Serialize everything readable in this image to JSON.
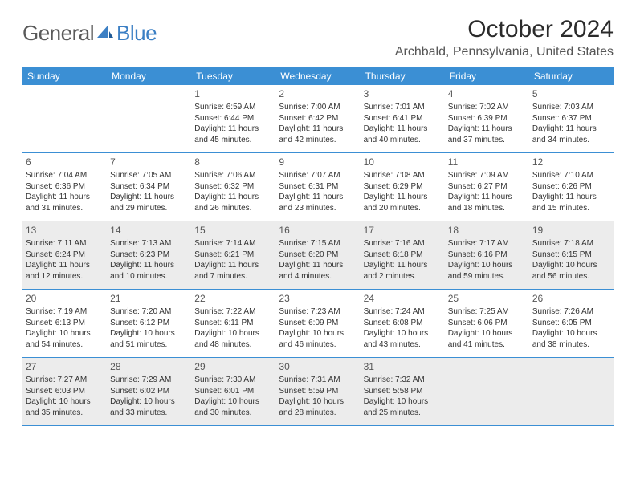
{
  "logo": {
    "general": "General",
    "blue": "Blue"
  },
  "title": "October 2024",
  "location": "Archbald, Pennsylvania, United States",
  "colors": {
    "header_bg": "#3b8fd4",
    "header_text": "#ffffff",
    "alt_bg": "#ececec",
    "border": "#3b8fd4",
    "logo_gray": "#5a5a5a",
    "logo_blue": "#3b7fc4"
  },
  "weekdays": [
    "Sunday",
    "Monday",
    "Tuesday",
    "Wednesday",
    "Thursday",
    "Friday",
    "Saturday"
  ],
  "weeks": [
    [
      {
        "empty": true
      },
      {
        "empty": true
      },
      {
        "n": "1",
        "sr": "6:59 AM",
        "ss": "6:44 PM",
        "dl": "11 hours and 45 minutes."
      },
      {
        "n": "2",
        "sr": "7:00 AM",
        "ss": "6:42 PM",
        "dl": "11 hours and 42 minutes."
      },
      {
        "n": "3",
        "sr": "7:01 AM",
        "ss": "6:41 PM",
        "dl": "11 hours and 40 minutes."
      },
      {
        "n": "4",
        "sr": "7:02 AM",
        "ss": "6:39 PM",
        "dl": "11 hours and 37 minutes."
      },
      {
        "n": "5",
        "sr": "7:03 AM",
        "ss": "6:37 PM",
        "dl": "11 hours and 34 minutes."
      }
    ],
    [
      {
        "n": "6",
        "sr": "7:04 AM",
        "ss": "6:36 PM",
        "dl": "11 hours and 31 minutes."
      },
      {
        "n": "7",
        "sr": "7:05 AM",
        "ss": "6:34 PM",
        "dl": "11 hours and 29 minutes."
      },
      {
        "n": "8",
        "sr": "7:06 AM",
        "ss": "6:32 PM",
        "dl": "11 hours and 26 minutes."
      },
      {
        "n": "9",
        "sr": "7:07 AM",
        "ss": "6:31 PM",
        "dl": "11 hours and 23 minutes."
      },
      {
        "n": "10",
        "sr": "7:08 AM",
        "ss": "6:29 PM",
        "dl": "11 hours and 20 minutes."
      },
      {
        "n": "11",
        "sr": "7:09 AM",
        "ss": "6:27 PM",
        "dl": "11 hours and 18 minutes."
      },
      {
        "n": "12",
        "sr": "7:10 AM",
        "ss": "6:26 PM",
        "dl": "11 hours and 15 minutes."
      }
    ],
    [
      {
        "n": "13",
        "sr": "7:11 AM",
        "ss": "6:24 PM",
        "dl": "11 hours and 12 minutes."
      },
      {
        "n": "14",
        "sr": "7:13 AM",
        "ss": "6:23 PM",
        "dl": "11 hours and 10 minutes."
      },
      {
        "n": "15",
        "sr": "7:14 AM",
        "ss": "6:21 PM",
        "dl": "11 hours and 7 minutes."
      },
      {
        "n": "16",
        "sr": "7:15 AM",
        "ss": "6:20 PM",
        "dl": "11 hours and 4 minutes."
      },
      {
        "n": "17",
        "sr": "7:16 AM",
        "ss": "6:18 PM",
        "dl": "11 hours and 2 minutes."
      },
      {
        "n": "18",
        "sr": "7:17 AM",
        "ss": "6:16 PM",
        "dl": "10 hours and 59 minutes."
      },
      {
        "n": "19",
        "sr": "7:18 AM",
        "ss": "6:15 PM",
        "dl": "10 hours and 56 minutes."
      }
    ],
    [
      {
        "n": "20",
        "sr": "7:19 AM",
        "ss": "6:13 PM",
        "dl": "10 hours and 54 minutes."
      },
      {
        "n": "21",
        "sr": "7:20 AM",
        "ss": "6:12 PM",
        "dl": "10 hours and 51 minutes."
      },
      {
        "n": "22",
        "sr": "7:22 AM",
        "ss": "6:11 PM",
        "dl": "10 hours and 48 minutes."
      },
      {
        "n": "23",
        "sr": "7:23 AM",
        "ss": "6:09 PM",
        "dl": "10 hours and 46 minutes."
      },
      {
        "n": "24",
        "sr": "7:24 AM",
        "ss": "6:08 PM",
        "dl": "10 hours and 43 minutes."
      },
      {
        "n": "25",
        "sr": "7:25 AM",
        "ss": "6:06 PM",
        "dl": "10 hours and 41 minutes."
      },
      {
        "n": "26",
        "sr": "7:26 AM",
        "ss": "6:05 PM",
        "dl": "10 hours and 38 minutes."
      }
    ],
    [
      {
        "n": "27",
        "sr": "7:27 AM",
        "ss": "6:03 PM",
        "dl": "10 hours and 35 minutes."
      },
      {
        "n": "28",
        "sr": "7:29 AM",
        "ss": "6:02 PM",
        "dl": "10 hours and 33 minutes."
      },
      {
        "n": "29",
        "sr": "7:30 AM",
        "ss": "6:01 PM",
        "dl": "10 hours and 30 minutes."
      },
      {
        "n": "30",
        "sr": "7:31 AM",
        "ss": "5:59 PM",
        "dl": "10 hours and 28 minutes."
      },
      {
        "n": "31",
        "sr": "7:32 AM",
        "ss": "5:58 PM",
        "dl": "10 hours and 25 minutes."
      },
      {
        "empty": true
      },
      {
        "empty": true
      }
    ]
  ],
  "alt_weeks": [
    2,
    4
  ],
  "labels": {
    "sunrise": "Sunrise: ",
    "sunset": "Sunset: ",
    "daylight": "Daylight: "
  }
}
